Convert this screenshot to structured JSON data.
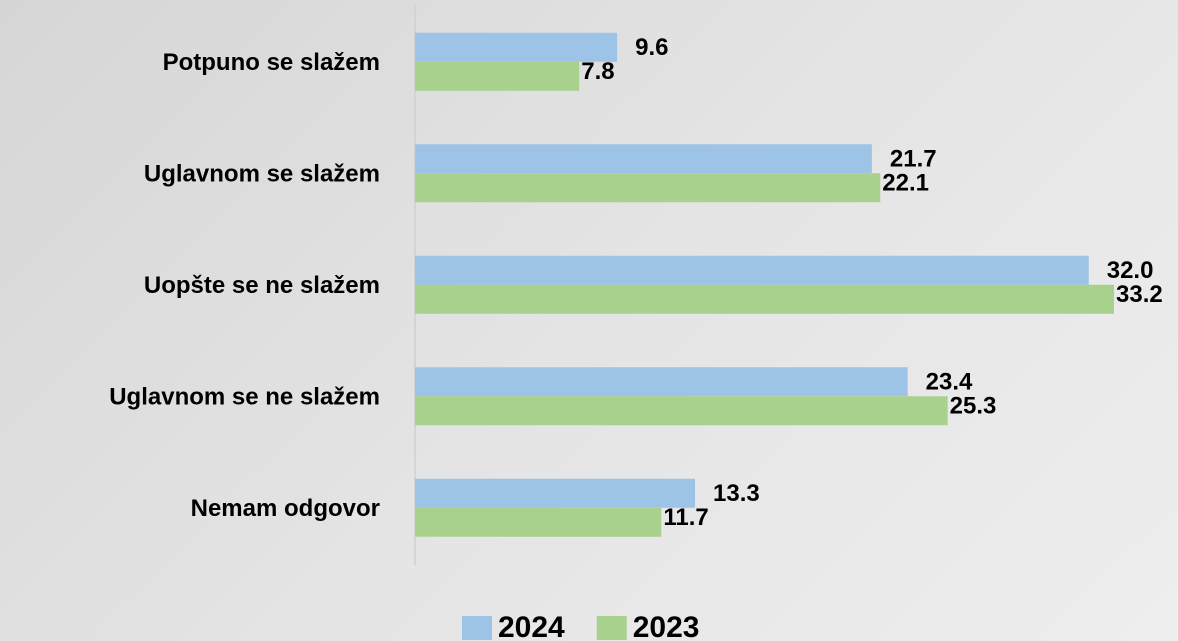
{
  "chart_data": {
    "type": "hbar",
    "categories": [
      "Potpuno se slažem",
      "Uglavnom se slažem",
      "Uopšte se ne slažem",
      "Uglavnom se ne slažem",
      "Nemam odgovor"
    ],
    "series": [
      {
        "name": "2024",
        "color": "#9dc3e6",
        "values": [
          9.6,
          21.7,
          32.0,
          23.4,
          13.3
        ],
        "value_labels": [
          "9.6",
          "21.7",
          "32.0",
          "23.4",
          "13.3"
        ]
      },
      {
        "name": "2023",
        "color": "#a9d18e",
        "values": [
          7.8,
          22.1,
          33.2,
          25.3,
          11.7
        ],
        "value_labels": [
          "7.8",
          "22.1",
          "33.2",
          "25.3",
          "11.7"
        ]
      }
    ],
    "legend": "bottom"
  }
}
